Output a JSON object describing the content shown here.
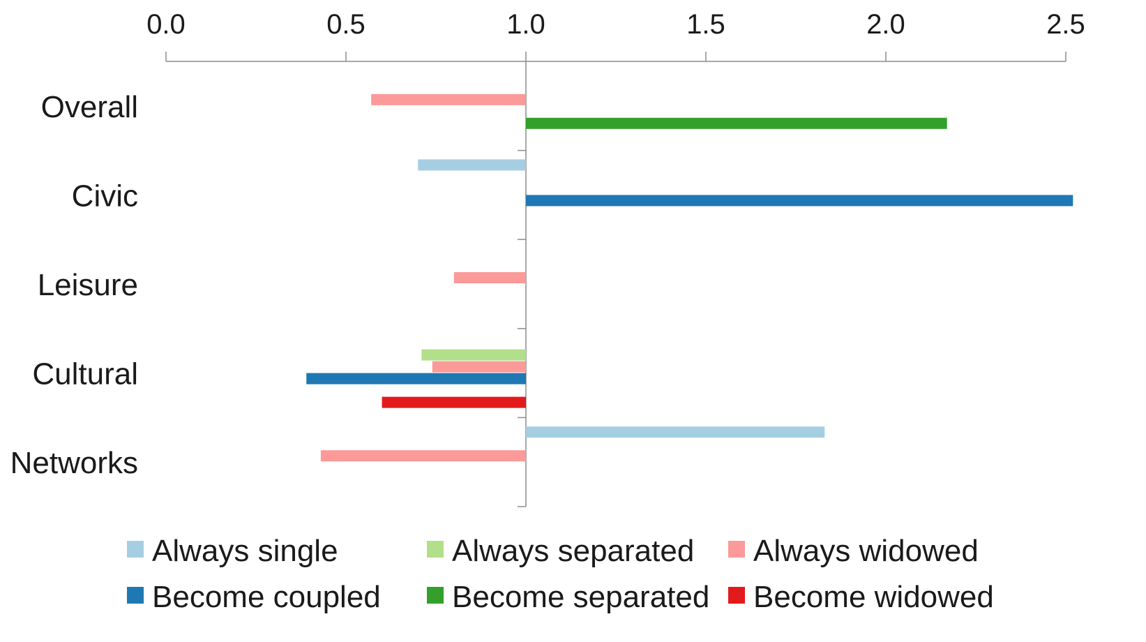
{
  "chart_data": {
    "type": "bar",
    "orientation": "horizontal",
    "baseline": 1.0,
    "categories": [
      "Overall",
      "Civic",
      "Leisure",
      "Cultural",
      "Networks"
    ],
    "xlim": [
      0,
      2.5
    ],
    "x_ticks": [
      "0.0",
      "0.5",
      "1.0",
      "1.5",
      "2.0",
      "2.5"
    ],
    "x_tick_values": [
      0,
      0.5,
      1.0,
      1.5,
      2.0,
      2.5
    ],
    "x_axis_position": "top",
    "grid": false,
    "legend_position": "bottom",
    "series": [
      {
        "name": "Always single",
        "color": "#a6cee3",
        "values": [
          null,
          0.7,
          null,
          null,
          1.83
        ]
      },
      {
        "name": "Always separated",
        "color": "#b2df8a",
        "values": [
          null,
          null,
          null,
          0.71,
          null
        ]
      },
      {
        "name": "Always widowed",
        "color": "#fb9a99",
        "values": [
          0.57,
          null,
          0.8,
          0.74,
          0.43
        ]
      },
      {
        "name": "Become coupled",
        "color": "#1f78b4",
        "values": [
          null,
          2.52,
          null,
          0.39,
          null
        ]
      },
      {
        "name": "Become separated",
        "color": "#33a02c",
        "values": [
          2.17,
          null,
          null,
          null,
          null
        ]
      },
      {
        "name": "Become widowed",
        "color": "#e31a1c",
        "values": [
          null,
          null,
          null,
          0.6,
          null
        ]
      }
    ]
  }
}
